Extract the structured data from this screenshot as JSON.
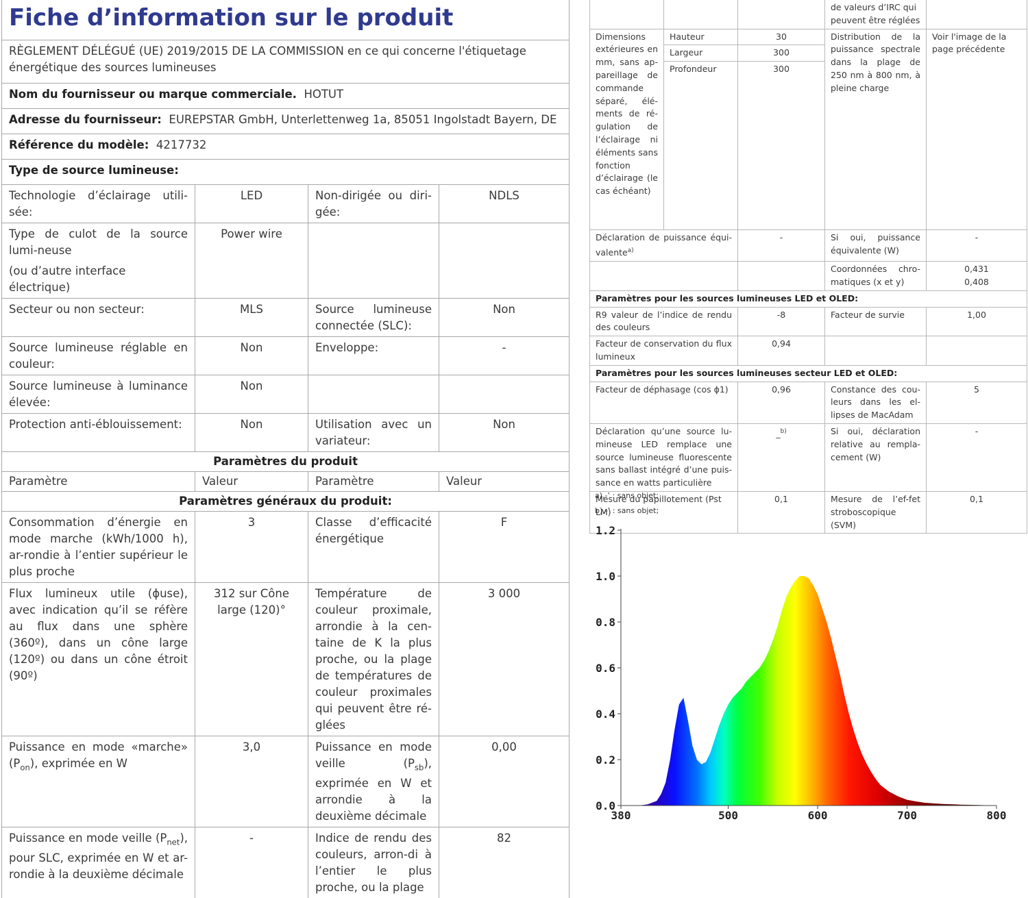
{
  "left": {
    "title": "Fiche d’information sur le produit",
    "regulation": "RÈGLEMENT DÉLÉGUÉ (UE) 2019/2015 DE LA COMMISSION en ce qui concerne l'étiquetage énergétique des sources lumineuses",
    "supplier_label": "Nom du fournisseur ou marque commerciale.",
    "supplier_value": "HOTUT",
    "address_label": "Adresse du fournisseur:",
    "address_value": "EUREPSTAR GmbH, Unterlettenweg 1a, 85051 Ingolstadt Bayern, DE",
    "model_label": "Référence du modèle:",
    "model_value": "4217732",
    "source_type": "Type de source lumineuse:",
    "r1": {
      "a": "Technologie d’éclairage utili-sée:",
      "b": "LED",
      "c": "Non-dirigée ou diri-gée:",
      "d": "NDLS"
    },
    "r2": {
      "a1": "Type de culot de la source lumi-neuse",
      "a2": "(ou d’autre interface électrique)",
      "b": "Power wire"
    },
    "r3": {
      "a": "Secteur ou non secteur:",
      "b": "MLS",
      "c": "Source lumineuse connectée (SLC):",
      "d": "Non"
    },
    "r4": {
      "a": "Source lumineuse réglable en couleur:",
      "b": "Non",
      "c": "Enveloppe:",
      "d": "-"
    },
    "r5": {
      "a": "Source lumineuse à luminance élevée:",
      "b": "Non"
    },
    "r6": {
      "a": "Protection anti-éblouissement:",
      "b": "Non",
      "c": "Utilisation avec un variateur:",
      "d": "Non"
    },
    "product_params": "Paramètres du produit",
    "col_param": "Paramètre",
    "col_value": "Valeur",
    "general_params": "Paramètres généraux du produit:",
    "g1": {
      "a": "Consommation d’énergie en mode marche (kWh/1000 h), ar-rondie à l’entier supérieur le plus proche",
      "b": "3",
      "c": "Classe d’efficacité énergétique",
      "d": "F"
    },
    "g2": {
      "a": "Flux lumineux utile (ɸuse), avec indication qu’il se réfère au flux dans une sphère (360º), dans un cône large (120º) ou dans un cône étroit (90º)",
      "b": "312 sur Cône large (120)°",
      "c": "Température de couleur proximale, arrondie à la cen-taine de K la plus proche, ou la plage de températures de couleur proximales qui peuvent être ré-glées",
      "d": "3 000"
    },
    "g3": {
      "a_pre": "Puissance en mode «marche» (P",
      "a_sub": "on",
      "a_post": "), exprimée en W",
      "b": "3,0",
      "c_pre": "Puissance en mode veille (P",
      "c_sub": "sb",
      "c_post": "), exprimée en W et arrondie à la deuxième décimale",
      "d": "0,00"
    },
    "g4": {
      "a_pre": "Puissance en mode veille (P",
      "a_sub": "net",
      "a_post": "), pour SLC, exprimée en W et ar-rondie à la deuxième décimale",
      "b": "-",
      "c": "Indice de rendu des couleurs, arron-di à l’entier le plus proche, ou la plage",
      "d": "82"
    }
  },
  "right": {
    "top_cont": "de valeurs d’IRC qui peuvent être réglées",
    "dim_label": "Dimensions extérieures en mm, sans ap-pareillage de commande séparé, élé-ments de ré-gulation de l’éclairage ni éléments sans fonction d’éclairage (le cas échéant)",
    "height_label": "Hauteur",
    "height_value": "30",
    "width_label": "Largeur",
    "width_value": "300",
    "depth_label": "Profondeur",
    "depth_value": "300",
    "spectral_label": "Distribution de la puissance spectrale dans la plage de 250 nm à 800 nm, à pleine charge",
    "spectral_value": "Voir l'image de la page précédente",
    "equiv_label": "Déclaration de puissance équi-valente",
    "equiv_sup": "a)",
    "equiv_value": "-",
    "equiv_yes_label": "Si oui, puissance équivalente (W)",
    "equiv_yes_value": "-",
    "chroma_label": "Coordonnées chro-matiques (x et y)",
    "chroma_x": "0,431",
    "chroma_y": "0,408",
    "led_section": "Paramètres pour les sources lumineuses LED et OLED:",
    "r9_label": "R9 valeur de l’indice de rendu des couleurs",
    "r9_value": "-8",
    "survival_label": "Facteur de survie",
    "survival_value": "1,00",
    "flux_maint_label": "Facteur de conservation du flux lumineux",
    "flux_maint_value": "0,94",
    "mains_section": "Paramètres pour les sources lumineuses secteur LED et OLED:",
    "phase_label": "Facteur de déphasage (cos ϕ1)",
    "phase_value": "0,96",
    "macadam_label": "Constance des cou-leurs dans les el-lipses de MacAdam",
    "macadam_value": "5",
    "replace_label": "Déclaration qu’une source lu-mineuse LED remplace une source lumineuse fluorescente sans ballast intégré d’une puis-sance en watts particulière",
    "replace_value": "_",
    "replace_sup": "b)",
    "replace_yes_label": "Si oui, déclaration relative au rempla-cement (W)",
    "replace_yes_value": "-",
    "flicker_label": "Mesure du papillotement (Pst LM)",
    "flicker_value": "0,1",
    "strobe_label": "Mesure de l’ef-fet stroboscopique (SVM)",
    "strobe_value": "0,1",
    "note_a": "a)‚-‛ : sans objet;",
    "note_b": "b)‚-‛ : sans objet;"
  },
  "chart_data": {
    "type": "area",
    "xlabel": "",
    "ylabel": "",
    "xlim": [
      380,
      800
    ],
    "ylim": [
      0,
      1.2
    ],
    "x_ticks": [
      "380",
      "500",
      "600",
      "700",
      "800"
    ],
    "y_ticks": [
      "0.0",
      "0.2",
      "0.4",
      "0.6",
      "0.8",
      "1.0",
      "1.2"
    ],
    "grid": false,
    "x": [
      400,
      410,
      420,
      425,
      430,
      435,
      440,
      445,
      450,
      455,
      460,
      465,
      470,
      475,
      480,
      485,
      490,
      495,
      500,
      505,
      510,
      515,
      520,
      525,
      530,
      535,
      540,
      545,
      550,
      555,
      560,
      565,
      570,
      575,
      580,
      585,
      590,
      595,
      600,
      605,
      610,
      615,
      620,
      625,
      630,
      635,
      640,
      645,
      650,
      655,
      660,
      665,
      670,
      680,
      690,
      700,
      710,
      720,
      740,
      760,
      780,
      800
    ],
    "y": [
      0.0,
      0.005,
      0.02,
      0.05,
      0.1,
      0.2,
      0.33,
      0.44,
      0.47,
      0.37,
      0.26,
      0.2,
      0.18,
      0.19,
      0.23,
      0.29,
      0.35,
      0.4,
      0.44,
      0.47,
      0.49,
      0.51,
      0.54,
      0.56,
      0.58,
      0.6,
      0.63,
      0.67,
      0.72,
      0.78,
      0.85,
      0.91,
      0.95,
      0.98,
      1.0,
      1.0,
      0.99,
      0.96,
      0.92,
      0.86,
      0.8,
      0.73,
      0.65,
      0.57,
      0.48,
      0.4,
      0.33,
      0.27,
      0.22,
      0.18,
      0.145,
      0.115,
      0.09,
      0.06,
      0.04,
      0.025,
      0.018,
      0.012,
      0.007,
      0.004,
      0.002,
      0.0
    ]
  }
}
